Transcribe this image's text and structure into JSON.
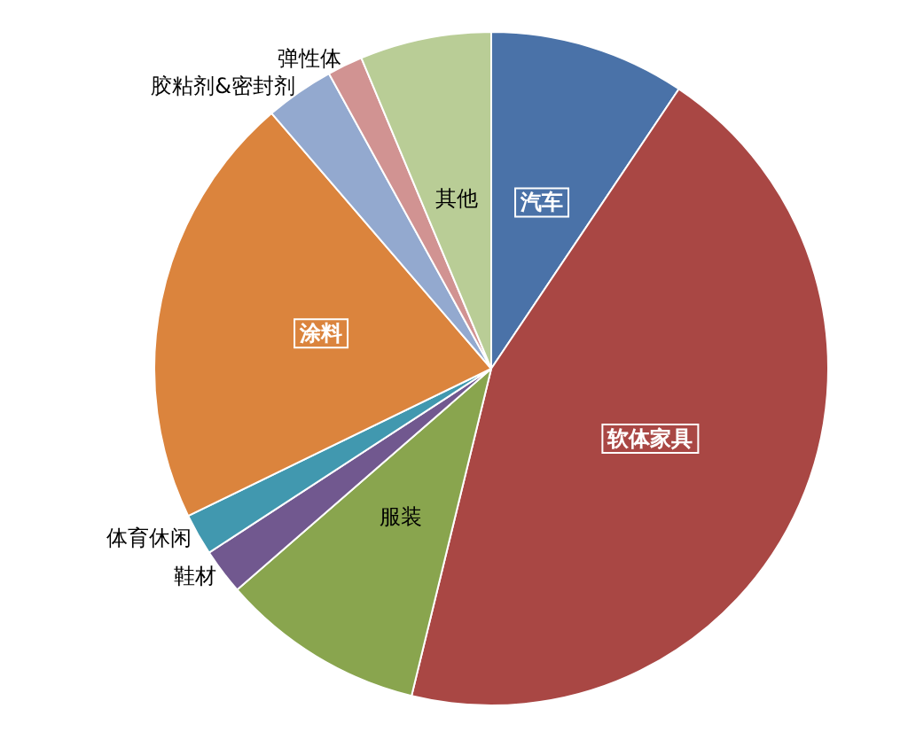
{
  "chart_data": {
    "type": "pie",
    "categories": [
      "汽车",
      "软体家具",
      "服装",
      "鞋材",
      "体育休闲",
      "涂料",
      "胶粘剂&密封剂",
      "弹性体",
      "其他"
    ],
    "values": [
      9.4,
      44.4,
      9.8,
      2.2,
      2,
      20.9,
      3.3,
      1.7,
      6.3
    ],
    "colors": [
      "#4a72a8",
      "#a94744",
      "#89a54e",
      "#71588f",
      "#4198af",
      "#db843d",
      "#93a9cf",
      "#d19392",
      "#b9cd96"
    ]
  }
}
